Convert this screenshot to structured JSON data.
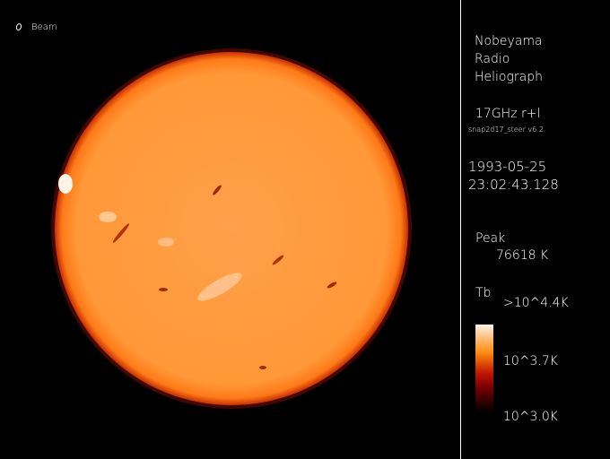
{
  "beam": {
    "label": "Beam",
    "icon": "beam-ellipse-icon"
  },
  "info": {
    "title_lines": [
      "Nobeyama",
      "Radio",
      "Heliograph"
    ],
    "frequency": "17GHz r+l",
    "software": "snap2d17_steer v6.2",
    "date": "1993-05-25",
    "time": "23:02:43.128",
    "peak_label": "Peak",
    "peak_value": "76618 K"
  },
  "colorbar": {
    "label": "Tb",
    "max_label": ">10^4.4K",
    "mid_label": "10^3.7K",
    "min_label": "10^3.0K",
    "colors": [
      "#fff6ea",
      "#ff8a10",
      "#c01800",
      "#000000"
    ]
  },
  "image": {
    "disk_color": "#ff9a3c",
    "limb_color": "#d83a00"
  }
}
